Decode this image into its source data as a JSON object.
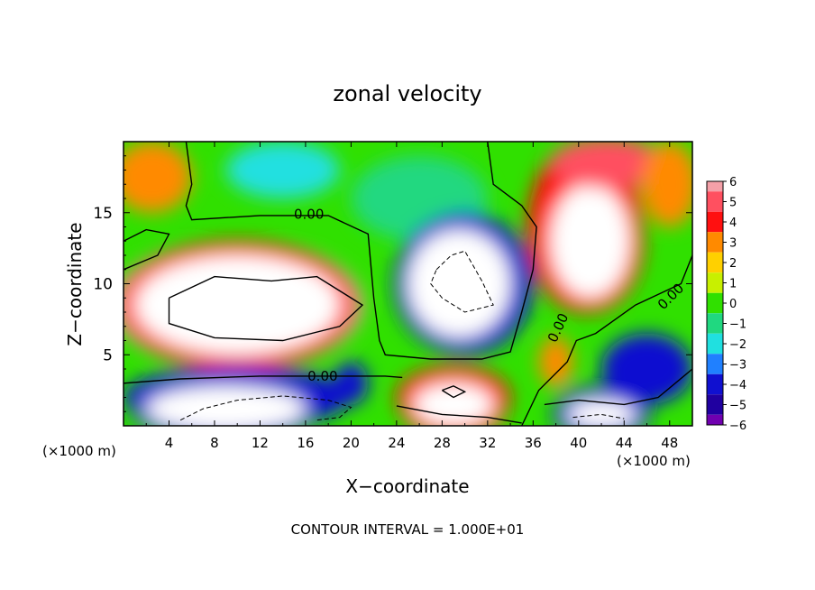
{
  "chart_data": {
    "type": "heatmap",
    "title": "zonal velocity",
    "xlabel": "X−coordinate",
    "ylabel": "Z−coordinate",
    "x_units_left": "(×1000 m)",
    "x_units_right": "(×1000 m)",
    "xlim": [
      0,
      50
    ],
    "ylim": [
      0,
      20
    ],
    "x_ticks": [
      4,
      8,
      12,
      16,
      20,
      24,
      28,
      32,
      36,
      40,
      44,
      48
    ],
    "x_tick_labels": [
      "4",
      "8",
      "12",
      "16",
      "20",
      "24",
      "28",
      "32",
      "36",
      "40",
      "44",
      "48"
    ],
    "y_ticks": [
      5,
      10,
      15
    ],
    "y_tick_labels": [
      "5",
      "10",
      "15"
    ],
    "footer": "CONTOUR INTERVAL = 1.000E+01",
    "colorbar": {
      "levels": [
        6,
        5,
        4,
        3,
        2,
        1,
        0,
        -1,
        -2,
        -3,
        -4,
        -5,
        -6
      ],
      "labels": [
        "6",
        "5",
        "4",
        "3",
        "2",
        "1",
        "0",
        "−1",
        "−2",
        "−3",
        "−4",
        "−5",
        "−6"
      ],
      "colors": [
        "#f4a0a8",
        "#ff5060",
        "#ff1010",
        "#ff8a00",
        "#ffd000",
        "#c8f000",
        "#30e000",
        "#20d880",
        "#20e0e0",
        "#2080ff",
        "#1010d0",
        "#2000a0",
        "#7000b0"
      ]
    },
    "contour_labels": [
      {
        "text": "0.00",
        "x": 16.3,
        "y": 14.9,
        "rotate": 0
      },
      {
        "text": "0.00",
        "x": 17.5,
        "y": 3.5,
        "rotate": 0
      },
      {
        "text": "0.00",
        "x": 38.2,
        "y": 6.9,
        "rotate": -65
      },
      {
        "text": "0.00",
        "x": 48.1,
        "y": 9.1,
        "rotate": -45
      }
    ],
    "field_blobs": [
      {
        "x": 2.5,
        "y": 17.5,
        "rx": 3.5,
        "ry": 2.5,
        "v": 3
      },
      {
        "x": 14,
        "y": 18,
        "rx": 5,
        "ry": 2,
        "v": -2
      },
      {
        "x": 26,
        "y": 16,
        "rx": 6,
        "ry": 3,
        "v": -1
      },
      {
        "x": 10,
        "y": 8.5,
        "rx": 11,
        "ry": 4.5,
        "v": 6
      },
      {
        "x": 10,
        "y": 8.5,
        "rx": 9,
        "ry": 3.5,
        "v": 7
      },
      {
        "x": 30,
        "y": 10,
        "rx": 6,
        "ry": 5,
        "v": -4.5
      },
      {
        "x": 29.5,
        "y": 10,
        "rx": 4.5,
        "ry": 3.8,
        "v": -7
      },
      {
        "x": 40.5,
        "y": 14,
        "rx": 5,
        "ry": 6,
        "v": 4
      },
      {
        "x": 41,
        "y": 13,
        "rx": 3.5,
        "ry": 4,
        "v": 7
      },
      {
        "x": 42.5,
        "y": 18.5,
        "rx": 5,
        "ry": 1.8,
        "v": 5
      },
      {
        "x": 48,
        "y": 17,
        "rx": 2.5,
        "ry": 3,
        "v": 3
      },
      {
        "x": 10,
        "y": 2,
        "rx": 10,
        "ry": 2.2,
        "v": -4
      },
      {
        "x": 9,
        "y": 1.2,
        "rx": 7,
        "ry": 1.6,
        "v": -7
      },
      {
        "x": 29,
        "y": 2,
        "rx": 5,
        "ry": 2.2,
        "v": 4
      },
      {
        "x": 29,
        "y": 1.5,
        "rx": 3.5,
        "ry": 1.5,
        "v": 7
      },
      {
        "x": 38,
        "y": 4.5,
        "rx": 1.5,
        "ry": 1.8,
        "v": 3
      },
      {
        "x": 46,
        "y": 4,
        "rx": 4,
        "ry": 2.5,
        "v": -4
      },
      {
        "x": 42,
        "y": 0.8,
        "rx": 3,
        "ry": 1,
        "v": -7
      },
      {
        "x": 20,
        "y": 3,
        "rx": 1.5,
        "ry": 1.5,
        "v": -4
      }
    ],
    "contour_lines": [
      {
        "style": "solid",
        "points": [
          [
            5.5,
            20
          ],
          [
            6,
            17
          ],
          [
            5.5,
            15.5
          ],
          [
            6,
            14.5
          ],
          [
            12,
            14.8
          ],
          [
            18,
            14.8
          ],
          [
            21.5,
            13.5
          ],
          [
            22,
            9
          ],
          [
            22.5,
            6
          ],
          [
            23,
            5
          ],
          [
            27,
            4.7
          ],
          [
            31.5,
            4.7
          ],
          [
            34,
            5.2
          ],
          [
            35,
            8
          ],
          [
            36,
            11
          ],
          [
            36.3,
            14
          ],
          [
            35,
            15.5
          ],
          [
            32.5,
            17
          ],
          [
            32,
            20
          ]
        ]
      },
      {
        "style": "solid",
        "points": [
          [
            0,
            13
          ],
          [
            2,
            13.8
          ],
          [
            4,
            13.5
          ],
          [
            3,
            12
          ],
          [
            1.5,
            11.5
          ],
          [
            0,
            11
          ]
        ]
      },
      {
        "style": "solid",
        "points": [
          [
            0,
            3
          ],
          [
            5,
            3.3
          ],
          [
            12,
            3.5
          ],
          [
            18,
            3.5
          ],
          [
            23,
            3.5
          ],
          [
            24.5,
            3.4
          ]
        ]
      },
      {
        "style": "solid",
        "points": [
          [
            50,
            12
          ],
          [
            49,
            10
          ],
          [
            45,
            8.5
          ],
          [
            41.5,
            6.5
          ],
          [
            39.8,
            6
          ],
          [
            39,
            4.5
          ],
          [
            36.5,
            2.5
          ],
          [
            35,
            0
          ]
        ]
      },
      {
        "style": "solid",
        "points": [
          [
            50,
            4
          ],
          [
            47,
            2
          ],
          [
            44,
            1.5
          ],
          [
            40,
            1.8
          ],
          [
            37,
            1.5
          ]
        ]
      },
      {
        "style": "solid",
        "points": [
          [
            4,
            9
          ],
          [
            8,
            10.5
          ],
          [
            13,
            10.2
          ],
          [
            17,
            10.5
          ],
          [
            21,
            8.5
          ],
          [
            19,
            7
          ],
          [
            14,
            6
          ],
          [
            8,
            6.2
          ],
          [
            4,
            7.2
          ],
          [
            4,
            9
          ]
        ]
      },
      {
        "style": "dashed",
        "points": [
          [
            27.5,
            11
          ],
          [
            28.8,
            12
          ],
          [
            30,
            12.3
          ],
          [
            31.5,
            10.2
          ],
          [
            32.5,
            8.5
          ],
          [
            30,
            8
          ],
          [
            28,
            9
          ],
          [
            27,
            10
          ],
          [
            27.5,
            11
          ]
        ]
      },
      {
        "style": "dashed",
        "points": [
          [
            5,
            0.4
          ],
          [
            7,
            1.2
          ],
          [
            10,
            1.8
          ],
          [
            14,
            2.1
          ],
          [
            18,
            1.8
          ],
          [
            20,
            1.3
          ],
          [
            19,
            0.6
          ],
          [
            17,
            0.4
          ]
        ]
      },
      {
        "style": "dashed",
        "points": [
          [
            39.5,
            0.6
          ],
          [
            42,
            0.8
          ],
          [
            44,
            0.5
          ]
        ]
      },
      {
        "style": "solid",
        "points": [
          [
            28,
            2.5
          ],
          [
            29,
            2.8
          ],
          [
            30,
            2.4
          ],
          [
            29,
            2
          ],
          [
            28,
            2.5
          ]
        ]
      },
      {
        "style": "solid",
        "points": [
          [
            24,
            1.4
          ],
          [
            28,
            0.8
          ],
          [
            32,
            0.6
          ],
          [
            35,
            0.2
          ]
        ]
      }
    ]
  }
}
